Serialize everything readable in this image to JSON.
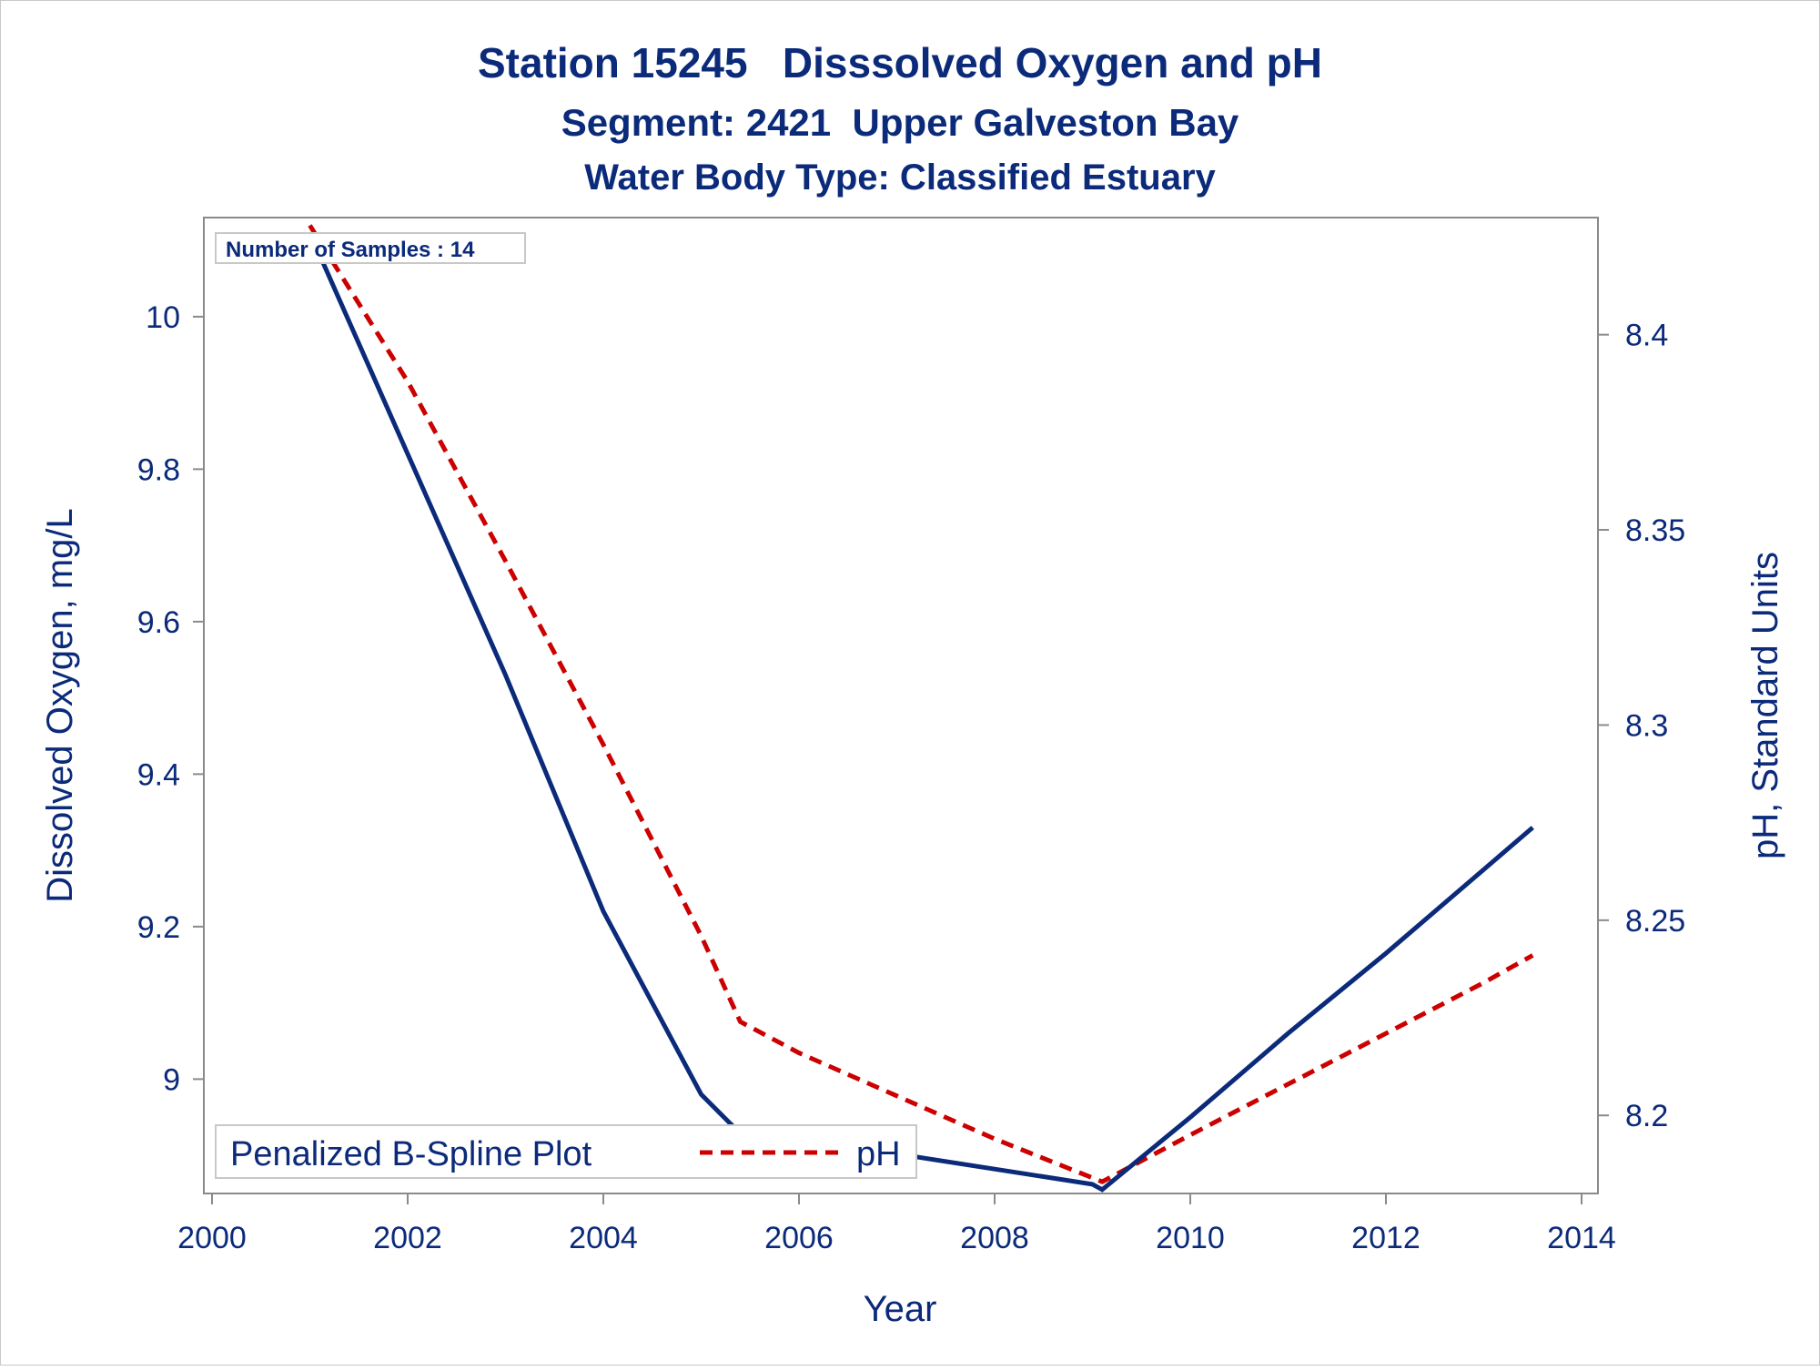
{
  "chart_data": {
    "type": "line",
    "title": "Station 15245   Disssolved Oxygen and pH",
    "subtitle": "Segment: 2421  Upper Galveston Bay",
    "subtitle2": "Water Body Type: Classified Estuary",
    "xlabel": "Year",
    "ylabel_left": "Dissolved Oxygen, mg/L",
    "ylabel_right": "pH, Standard Units",
    "x_ticks": [
      "2000",
      "2002",
      "2004",
      "2006",
      "2008",
      "2010",
      "2012",
      "2014"
    ],
    "y_left_ticks": [
      "9",
      "9.2",
      "9.4",
      "9.6",
      "9.8",
      "10"
    ],
    "y_right_ticks": [
      "8.2",
      "8.25",
      "8.3",
      "8.35",
      "8.4"
    ],
    "xlim": [
      2000,
      2014
    ],
    "ylim_left": [
      8.85,
      10.13
    ],
    "ylim_right": [
      8.18,
      8.43
    ],
    "inset_note": "Number of Samples : 14",
    "legend": {
      "title": "Penalized B-Spline Plot",
      "entries": [
        "pH"
      ],
      "position": "bottom-left"
    },
    "grid": false,
    "series": [
      {
        "name": "Dissolved Oxygen",
        "axis": "left",
        "color": "#0b2a7a",
        "style": "solid",
        "x": [
          2001.0,
          2002.0,
          2003.0,
          2004.0,
          2005.0,
          2005.35,
          2006.0,
          2007.0,
          2008.0,
          2009.0,
          2009.1,
          2010.0,
          2011.0,
          2012.0,
          2013.0,
          2013.5
        ],
        "y": [
          10.11,
          9.82,
          9.53,
          9.22,
          8.98,
          8.935,
          8.922,
          8.902,
          8.882,
          8.862,
          8.855,
          8.95,
          9.06,
          9.165,
          9.275,
          9.33
        ]
      },
      {
        "name": "pH",
        "axis": "right",
        "color": "#cc0000",
        "style": "dashed",
        "x": [
          2001.0,
          2002.0,
          2003.0,
          2004.0,
          2005.0,
          2005.4,
          2006.0,
          2007.0,
          2008.0,
          2009.0,
          2009.1,
          2010.0,
          2011.0,
          2012.0,
          2013.0,
          2013.5
        ],
        "y": [
          8.428,
          8.388,
          8.342,
          8.295,
          8.246,
          8.224,
          8.216,
          8.205,
          8.194,
          8.184,
          8.183,
          8.195,
          8.208,
          8.221,
          8.234,
          8.241
        ]
      }
    ]
  },
  "colors": {
    "text": "#0b2a7a",
    "axis": "#8a8a8a",
    "do_line": "#0b2a7a",
    "ph_line": "#cc0000"
  }
}
